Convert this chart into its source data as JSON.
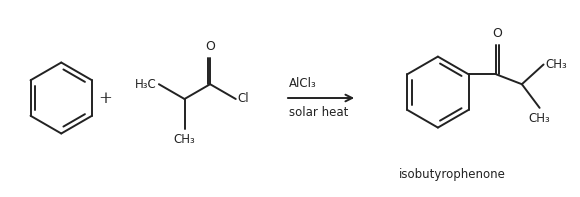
{
  "label_isobutyrophenone": "isobutyrophenone",
  "label_alcl3_above": "AlCl₃",
  "label_solar_heat": "solar heat",
  "label_plus": "+",
  "label_cl": "Cl",
  "label_o1": "O",
  "label_o2": "O",
  "label_h3c": "H₃C",
  "label_ch3_1": "CH₃",
  "label_ch3_2": "CH₃",
  "label_ch3_3": "CH₃",
  "bg_color": "#ffffff",
  "line_color": "#222222",
  "text_color": "#222222",
  "figsize": [
    5.8,
    1.97
  ],
  "dpi": 100
}
